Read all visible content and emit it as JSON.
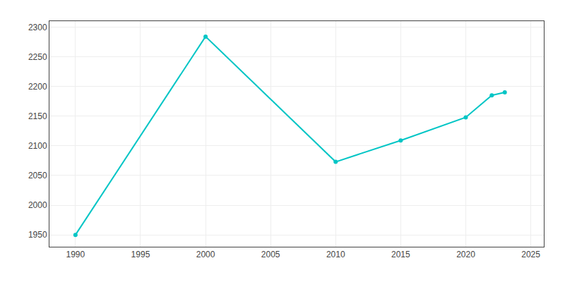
{
  "chart_data": {
    "type": "line",
    "x": [
      1990,
      2000,
      2010,
      2015,
      2020,
      2022,
      2023
    ],
    "values": [
      1950,
      2284,
      2073,
      2109,
      2148,
      2185,
      2190
    ],
    "color": "#00C5C5",
    "marker": "circle",
    "xlim": [
      1988,
      2026
    ],
    "xticks": [
      1990,
      1995,
      2000,
      2005,
      2010,
      2015,
      2020,
      2025
    ],
    "ylim": [
      1930,
      2310
    ],
    "yticks": [
      1950,
      2000,
      2050,
      2100,
      2150,
      2200,
      2250,
      2300
    ],
    "grid": true
  }
}
